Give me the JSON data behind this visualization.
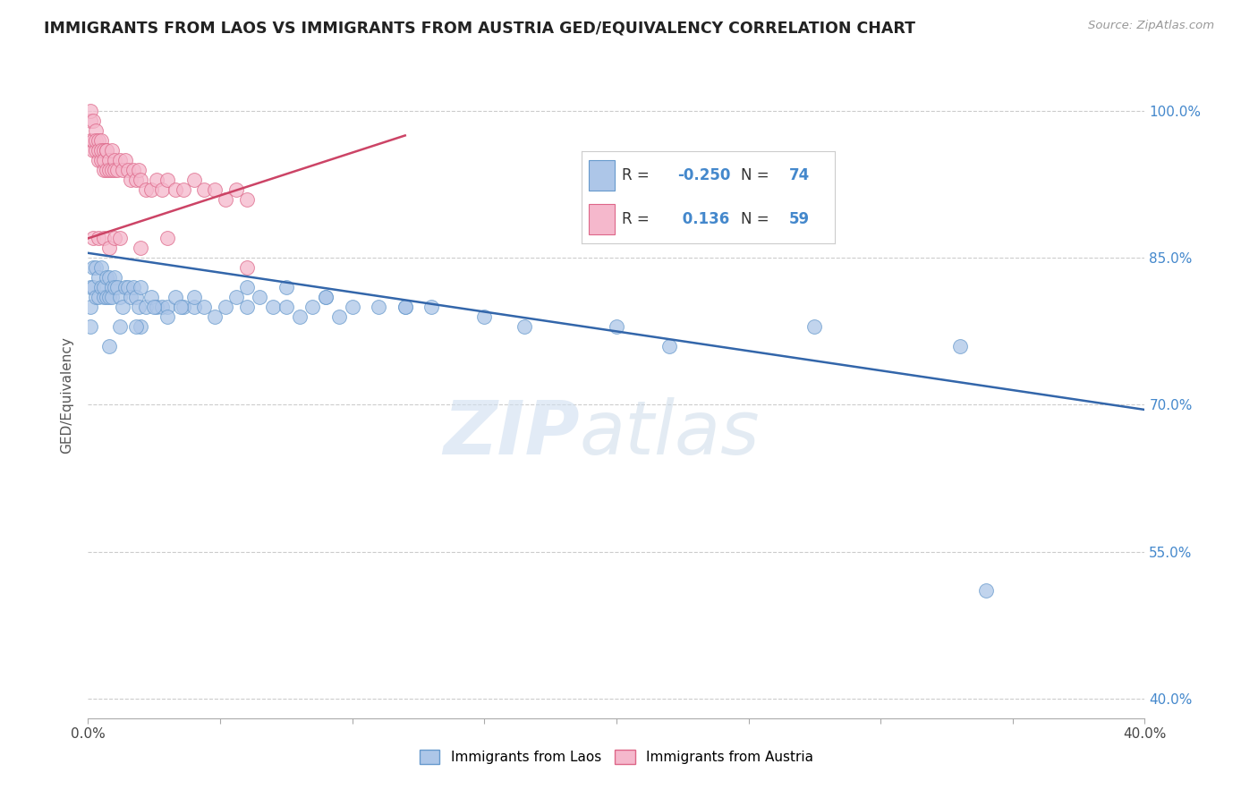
{
  "title": "IMMIGRANTS FROM LAOS VS IMMIGRANTS FROM AUSTRIA GED/EQUIVALENCY CORRELATION CHART",
  "source": "Source: ZipAtlas.com",
  "ylabel": "GED/Equivalency",
  "xmin": 0.0,
  "xmax": 0.4,
  "ymin": 0.38,
  "ymax": 1.04,
  "yticks": [
    0.4,
    0.55,
    0.7,
    0.85,
    1.0
  ],
  "ytick_labels": [
    "40.0%",
    "55.0%",
    "70.0%",
    "85.0%",
    "100.0%"
  ],
  "xtick_count": 9,
  "watermark_line1": "ZIP",
  "watermark_line2": "atlas",
  "series": [
    {
      "name": "Immigrants from Laos",
      "color": "#adc6e8",
      "edge_color": "#6699cc",
      "R": -0.25,
      "N": 74,
      "line_color": "#3366aa",
      "line_x": [
        0.0,
        0.4
      ],
      "line_y": [
        0.855,
        0.695
      ],
      "points_x": [
        0.001,
        0.001,
        0.001,
        0.002,
        0.002,
        0.003,
        0.003,
        0.004,
        0.004,
        0.005,
        0.005,
        0.006,
        0.006,
        0.007,
        0.007,
        0.008,
        0.008,
        0.009,
        0.009,
        0.01,
        0.01,
        0.011,
        0.012,
        0.013,
        0.014,
        0.015,
        0.016,
        0.017,
        0.018,
        0.019,
        0.02,
        0.022,
        0.024,
        0.026,
        0.028,
        0.03,
        0.033,
        0.036,
        0.04,
        0.044,
        0.048,
        0.052,
        0.056,
        0.06,
        0.065,
        0.07,
        0.075,
        0.08,
        0.085,
        0.09,
        0.095,
        0.1,
        0.11,
        0.12,
        0.13,
        0.02,
        0.025,
        0.03,
        0.035,
        0.04,
        0.008,
        0.012,
        0.018,
        0.06,
        0.075,
        0.09,
        0.12,
        0.15,
        0.165,
        0.2,
        0.22,
        0.275,
        0.33,
        0.34
      ],
      "points_y": [
        0.82,
        0.8,
        0.78,
        0.84,
        0.82,
        0.81,
        0.84,
        0.81,
        0.83,
        0.84,
        0.82,
        0.81,
        0.82,
        0.83,
        0.81,
        0.83,
        0.81,
        0.82,
        0.81,
        0.83,
        0.82,
        0.82,
        0.81,
        0.8,
        0.82,
        0.82,
        0.81,
        0.82,
        0.81,
        0.8,
        0.82,
        0.8,
        0.81,
        0.8,
        0.8,
        0.8,
        0.81,
        0.8,
        0.8,
        0.8,
        0.79,
        0.8,
        0.81,
        0.8,
        0.81,
        0.8,
        0.8,
        0.79,
        0.8,
        0.81,
        0.79,
        0.8,
        0.8,
        0.8,
        0.8,
        0.78,
        0.8,
        0.79,
        0.8,
        0.81,
        0.76,
        0.78,
        0.78,
        0.82,
        0.82,
        0.81,
        0.8,
        0.79,
        0.78,
        0.78,
        0.76,
        0.78,
        0.76,
        0.51
      ]
    },
    {
      "name": "Immigrants from Austria",
      "color": "#f5b8cc",
      "edge_color": "#dd6688",
      "R": 0.136,
      "N": 59,
      "line_color": "#cc4466",
      "line_x": [
        0.0,
        0.12
      ],
      "line_y": [
        0.87,
        0.975
      ],
      "points_x": [
        0.001,
        0.001,
        0.001,
        0.002,
        0.002,
        0.002,
        0.003,
        0.003,
        0.003,
        0.004,
        0.004,
        0.004,
        0.005,
        0.005,
        0.005,
        0.006,
        0.006,
        0.006,
        0.007,
        0.007,
        0.007,
        0.008,
        0.008,
        0.009,
        0.009,
        0.01,
        0.01,
        0.011,
        0.012,
        0.013,
        0.014,
        0.015,
        0.016,
        0.017,
        0.018,
        0.019,
        0.02,
        0.022,
        0.024,
        0.026,
        0.028,
        0.03,
        0.033,
        0.036,
        0.04,
        0.044,
        0.048,
        0.052,
        0.056,
        0.06,
        0.002,
        0.004,
        0.006,
        0.008,
        0.01,
        0.012,
        0.02,
        0.03,
        0.06
      ],
      "points_y": [
        0.99,
        0.97,
        1.0,
        0.99,
        0.96,
        0.97,
        0.98,
        0.96,
        0.97,
        0.97,
        0.95,
        0.96,
        0.97,
        0.95,
        0.96,
        0.96,
        0.94,
        0.95,
        0.96,
        0.94,
        0.96,
        0.95,
        0.94,
        0.96,
        0.94,
        0.95,
        0.94,
        0.94,
        0.95,
        0.94,
        0.95,
        0.94,
        0.93,
        0.94,
        0.93,
        0.94,
        0.93,
        0.92,
        0.92,
        0.93,
        0.92,
        0.93,
        0.92,
        0.92,
        0.93,
        0.92,
        0.92,
        0.91,
        0.92,
        0.91,
        0.87,
        0.87,
        0.87,
        0.86,
        0.87,
        0.87,
        0.86,
        0.87,
        0.84
      ]
    }
  ],
  "legend_R_values": [
    "-0.250",
    " 0.136"
  ],
  "legend_N_values": [
    "74",
    "59"
  ],
  "legend_box_colors": [
    "#adc6e8",
    "#f5b8cc"
  ],
  "legend_edge_colors": [
    "#6699cc",
    "#dd6688"
  ],
  "grid_color": "#cccccc",
  "background_color": "#ffffff",
  "title_color": "#222222",
  "source_color": "#999999",
  "ylabel_color": "#555555",
  "ytick_color": "#4488cc",
  "R_label_color": "#333333",
  "R_value_color": "#4488cc",
  "N_label_color": "#333333",
  "N_value_color": "#4488cc"
}
